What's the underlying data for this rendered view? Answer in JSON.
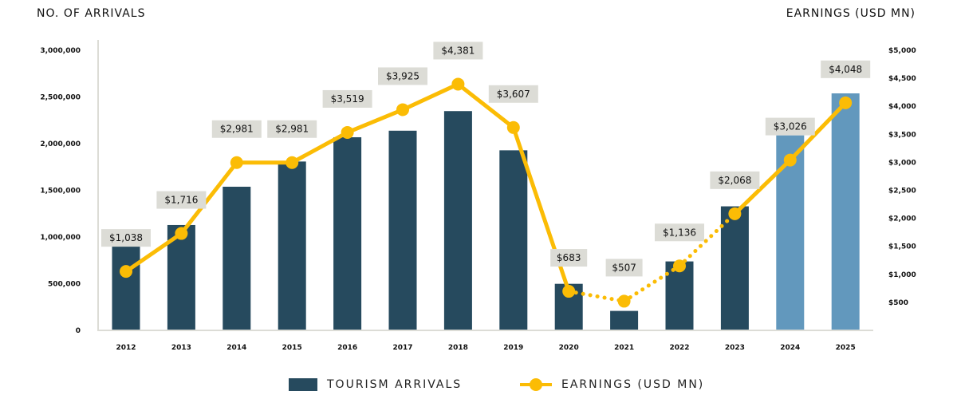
{
  "chart_data": {
    "type": "bar+line",
    "left_axis_title": "NO. OF ARRIVALS",
    "right_axis_title": "EARNINGS (USD MN)",
    "categories": [
      "2012",
      "2013",
      "2014",
      "2015",
      "2016",
      "2017",
      "2018",
      "2019",
      "2020",
      "2021",
      "2022",
      "2023",
      "2024",
      "2025"
    ],
    "left_ylim": [
      0,
      3000000
    ],
    "left_ticks": [
      "0",
      "500,000",
      "1,000,000",
      "1,500,000",
      "2,000,000",
      "2,500,000",
      "3,000,000"
    ],
    "right_ylim": [
      0,
      5000
    ],
    "right_ticks": [
      "$500",
      "$1,000",
      "$1,500",
      "$2,000",
      "$2,500",
      "$3,000",
      "$3,500",
      "$4,000",
      "$4,500",
      "$5,000"
    ],
    "series": [
      {
        "name": "TOURISM ARRIVALS",
        "type": "bar",
        "axis": "left",
        "values": [
          1010000,
          1120000,
          1530000,
          1800000,
          2060000,
          2130000,
          2340000,
          1920000,
          490000,
          200000,
          730000,
          1320000,
          2080000,
          2530000
        ],
        "projected_from": "2024"
      },
      {
        "name": "EARNINGS (USD MN)",
        "type": "line",
        "axis": "right",
        "values": [
          1038,
          1716,
          2981,
          2981,
          3519,
          3925,
          4381,
          3607,
          683,
          507,
          1136,
          2068,
          3026,
          4048
        ],
        "labels": [
          "$1,038",
          "$1,716",
          "$2,981",
          "$2,981",
          "$3,519",
          "$3,925",
          "$4,381",
          "$3,607",
          "$683",
          "$507",
          "$1,136",
          "$2,068",
          "$3,026",
          "$4,048"
        ],
        "dotted_segments": [
          "2020-2021",
          "2021-2022",
          "2022-2023"
        ]
      }
    ],
    "legend_placement": "bottom",
    "grid": false,
    "colors": {
      "bar": "#264a5e",
      "bar_projected": "#6298bd",
      "line": "#fbbc05",
      "label_bg": "#dcdcd6",
      "axis": "#dcdcd6"
    }
  }
}
